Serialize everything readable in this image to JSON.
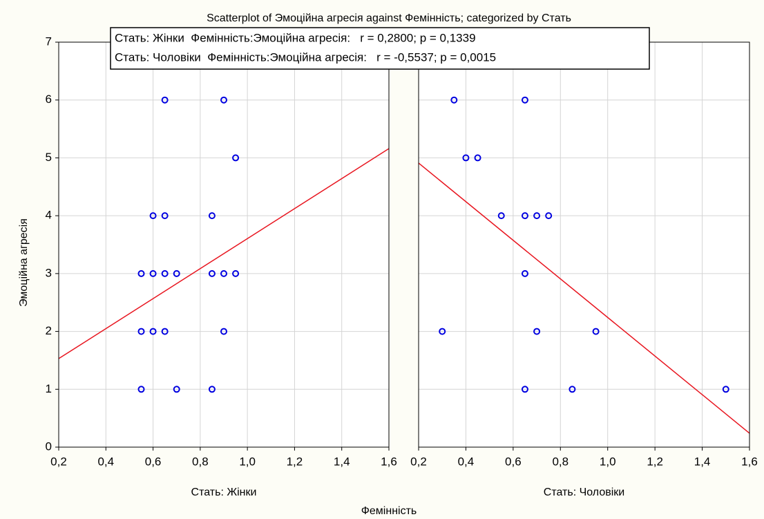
{
  "chart_data": {
    "type": "scatter",
    "title": "Scatterplot of Эмоційна агресія against Фемінність; categorized by Стать",
    "xlabel": "Фемінність",
    "ylabel": "Эмоційна агресія",
    "legend": [
      "Стать: Жінки  Фемінність:Эмоційна агресія:   r = 0,2800; p = 0,1339",
      "Стать: Чоловіки  Фемінність:Эмоційна агресія:   r = -0,5537; p = 0,0015"
    ],
    "color": "#0000e0",
    "fit_color": "#e8141e",
    "grid": true,
    "xlim": [
      0.2,
      1.6
    ],
    "xticks": [
      {
        "value": 0.2,
        "label": "0,2"
      },
      {
        "value": 0.4,
        "label": "0,4"
      },
      {
        "value": 0.6,
        "label": "0,6"
      },
      {
        "value": 0.8,
        "label": "0,8"
      },
      {
        "value": 1.0,
        "label": "1,0"
      },
      {
        "value": 1.2,
        "label": "1,2"
      },
      {
        "value": 1.4,
        "label": "1,4"
      },
      {
        "value": 1.6,
        "label": "1,6"
      }
    ],
    "ylim": [
      0,
      7
    ],
    "yticks": [
      0,
      1,
      2,
      3,
      4,
      5,
      6,
      7
    ],
    "panels": [
      {
        "label": "Стать: Жінки",
        "x": [
          0.65,
          0.9,
          0.95,
          0.6,
          0.65,
          0.85,
          0.55,
          0.6,
          0.65,
          0.7,
          0.85,
          0.9,
          0.95,
          0.55,
          0.6,
          0.65,
          0.9,
          0.55,
          0.7,
          0.85
        ],
        "y": [
          6,
          6,
          5,
          4,
          4,
          4,
          3,
          3,
          3,
          3,
          3,
          3,
          3,
          2,
          2,
          2,
          2,
          1,
          1,
          1
        ],
        "fit": {
          "x": [
            0.2,
            1.6
          ],
          "y": [
            1.53,
            5.16
          ]
        }
      },
      {
        "label": "Стать: Чоловіки",
        "x": [
          0.35,
          0.65,
          0.4,
          0.45,
          0.55,
          0.65,
          0.7,
          0.75,
          0.65,
          0.3,
          0.7,
          0.95,
          0.65,
          0.85,
          1.5
        ],
        "y": [
          6,
          6,
          5,
          5,
          4,
          4,
          4,
          4,
          3,
          2,
          2,
          2,
          1,
          1,
          1
        ],
        "fit": {
          "x": [
            0.2,
            1.6
          ],
          "y": [
            4.91,
            0.24
          ]
        }
      }
    ]
  }
}
